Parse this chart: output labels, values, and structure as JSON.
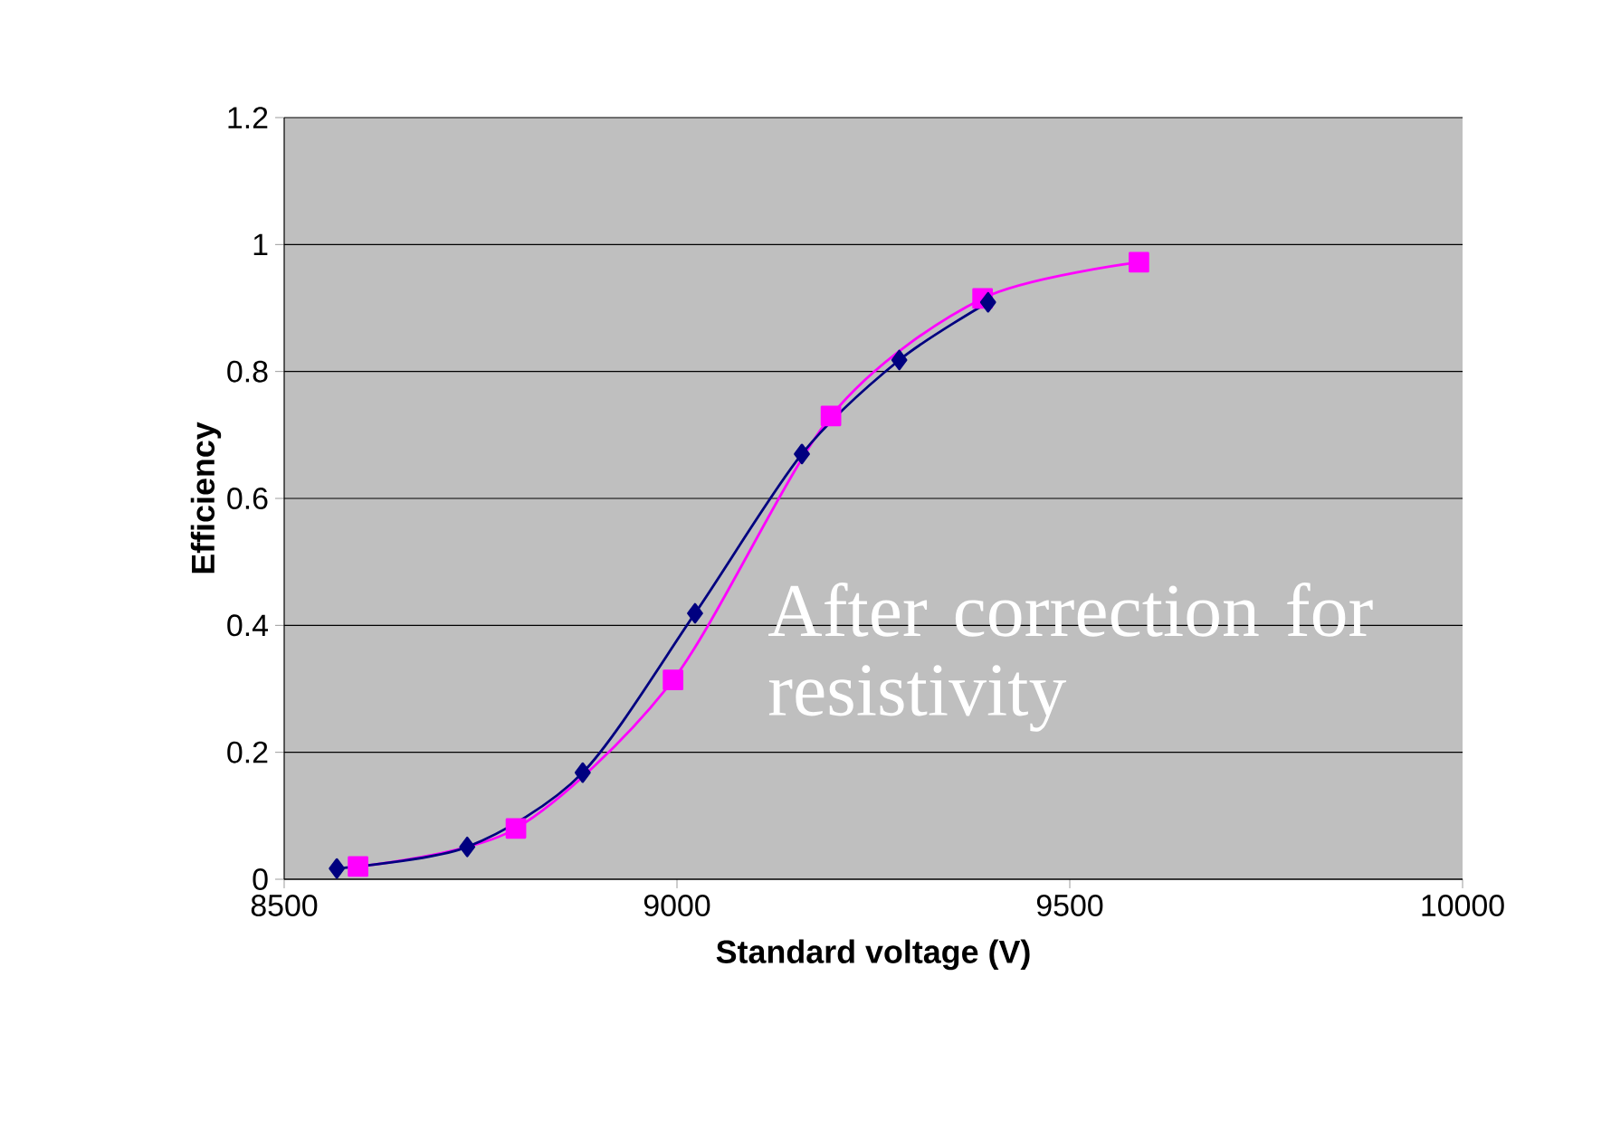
{
  "chart_data": {
    "type": "line",
    "xlabel": "Standard voltage (V)",
    "ylabel": "Efficiency",
    "annotations": [
      "After correction for resistivity"
    ],
    "series": [
      {
        "color": "#000080",
        "marker": "diamond",
        "x": [
          8567,
          8733,
          8880,
          9023,
          9159,
          9283,
          9396
        ],
        "values": [
          0.017,
          0.051,
          0.168,
          0.419,
          0.67,
          0.818,
          0.909
        ]
      },
      {
        "color": "#ff00ff",
        "marker": "square",
        "x": [
          8594,
          8795,
          8995,
          9196,
          9389,
          9588
        ],
        "values": [
          0.02,
          0.08,
          0.314,
          0.73,
          0.915,
          0.972
        ]
      }
    ],
    "xlim": [
      8500,
      10000
    ],
    "xticks": [
      8500,
      9000,
      9500,
      10000
    ],
    "ylim": [
      0,
      1.2
    ],
    "yticks": [
      0,
      0.2,
      0.4,
      0.6,
      0.8,
      1,
      1.2
    ],
    "grid": "y",
    "line_style": "solid"
  }
}
